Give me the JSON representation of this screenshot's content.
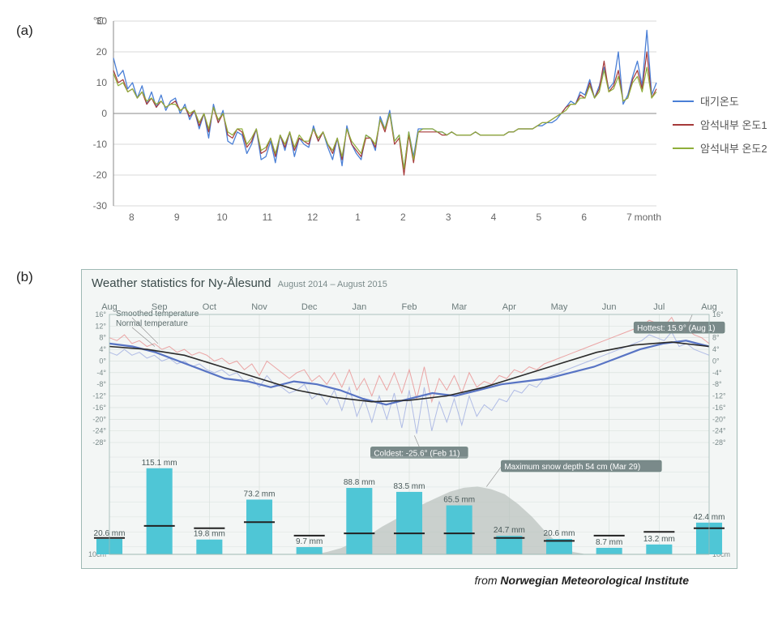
{
  "panel_a": {
    "label": "(a)",
    "y_unit": "℃",
    "x_unit": "month",
    "x_ticks": [
      "8",
      "9",
      "10",
      "11",
      "12",
      "1",
      "2",
      "3",
      "4",
      "5",
      "6",
      "7"
    ],
    "y_min": -30,
    "y_max": 30,
    "y_step": 10,
    "grid_color": "#d8d8d8",
    "axis_color": "#888888",
    "background": "#ffffff",
    "legend": [
      {
        "label": "대기온도",
        "color": "#4a7fd6"
      },
      {
        "label": "암석내부 온도1",
        "color": "#a63a3a"
      },
      {
        "label": "암석내부 온도2",
        "color": "#8fae3a"
      }
    ],
    "series": {
      "air": {
        "color": "#4a7fd6",
        "width": 1.3,
        "values": [
          18,
          12,
          14,
          8,
          10,
          5,
          9,
          3,
          7,
          2,
          6,
          1,
          4,
          5,
          0,
          3,
          -2,
          1,
          -5,
          0,
          -8,
          3,
          -3,
          1,
          -9,
          -10,
          -6,
          -7,
          -13,
          -10,
          -5,
          -15,
          -14,
          -9,
          -16,
          -7,
          -12,
          -6,
          -14,
          -8,
          -10,
          -11,
          -4,
          -9,
          -6,
          -11,
          -15,
          -8,
          -17,
          -4,
          -10,
          -13,
          -15,
          -7,
          -8,
          -12,
          -1,
          -5,
          1,
          -9,
          -7,
          -18,
          -6,
          -14,
          -5,
          -5,
          -5,
          -5,
          -6,
          -6,
          -7,
          -6,
          -7,
          -7,
          -7,
          -7,
          -6,
          -7,
          -7,
          -7,
          -7,
          -7,
          -7,
          -6,
          -6,
          -5,
          -5,
          -5,
          -5,
          -4,
          -4,
          -3,
          -3,
          -2,
          0,
          2,
          4,
          3,
          7,
          6,
          11,
          5,
          9,
          15,
          8,
          10,
          20,
          3,
          6,
          12,
          17,
          9,
          27,
          6,
          10
        ]
      },
      "rock1": {
        "color": "#a63a3a",
        "width": 1.2,
        "values": [
          14,
          10,
          11,
          7,
          8,
          5,
          7,
          3,
          5,
          2,
          4,
          2,
          3,
          4,
          1,
          2,
          -1,
          1,
          -4,
          0,
          -6,
          2,
          -3,
          0,
          -7,
          -8,
          -5,
          -6,
          -11,
          -9,
          -5,
          -13,
          -12,
          -8,
          -14,
          -7,
          -11,
          -6,
          -12,
          -8,
          -9,
          -10,
          -5,
          -9,
          -6,
          -10,
          -13,
          -8,
          -15,
          -5,
          -10,
          -12,
          -14,
          -8,
          -8,
          -11,
          -2,
          -6,
          0,
          -10,
          -8,
          -20,
          -7,
          -16,
          -6,
          -6,
          -6,
          -6,
          -6,
          -7,
          -7,
          -6,
          -7,
          -7,
          -7,
          -7,
          -6,
          -7,
          -7,
          -7,
          -7,
          -7,
          -7,
          -6,
          -6,
          -5,
          -5,
          -5,
          -5,
          -4,
          -3,
          -3,
          -2,
          -1,
          0,
          2,
          3,
          3,
          6,
          5,
          10,
          5,
          8,
          17,
          7,
          9,
          14,
          4,
          5,
          11,
          14,
          8,
          20,
          5,
          8
        ]
      },
      "rock2": {
        "color": "#8fae3a",
        "width": 1.2,
        "values": [
          13,
          9,
          10,
          7,
          8,
          5,
          7,
          4,
          5,
          3,
          4,
          2,
          3,
          3,
          1,
          2,
          0,
          1,
          -3,
          0,
          -5,
          2,
          -2,
          0,
          -6,
          -7,
          -5,
          -5,
          -10,
          -8,
          -5,
          -12,
          -11,
          -8,
          -13,
          -7,
          -10,
          -6,
          -11,
          -7,
          -9,
          -9,
          -5,
          -8,
          -6,
          -10,
          -12,
          -8,
          -14,
          -5,
          -9,
          -11,
          -13,
          -7,
          -8,
          -10,
          -2,
          -5,
          0,
          -9,
          -7,
          -18,
          -6,
          -15,
          -6,
          -5,
          -5,
          -5,
          -6,
          -6,
          -7,
          -6,
          -7,
          -7,
          -7,
          -7,
          -6,
          -7,
          -7,
          -7,
          -7,
          -7,
          -7,
          -6,
          -6,
          -5,
          -5,
          -5,
          -5,
          -4,
          -3,
          -3,
          -2,
          -1,
          0,
          1,
          3,
          3,
          5,
          5,
          9,
          5,
          7,
          14,
          7,
          8,
          12,
          4,
          5,
          10,
          12,
          7,
          15,
          5,
          7
        ]
      }
    }
  },
  "panel_b": {
    "label": "(b)",
    "title": "Weather statistics for Ny-Ålesund",
    "subtitle": "August 2014 – August 2015",
    "background": "#f3f6f5",
    "border_color": "#9fb9b4",
    "grid_color": "#d4ddd9",
    "credit_prefix": "from ",
    "credit_source": "Norwegian Meteorological Institute",
    "months": [
      "Aug",
      "Sep",
      "Oct",
      "Nov",
      "Dec",
      "Jan",
      "Feb",
      "Mar",
      "Apr",
      "May",
      "Jun",
      "Jul",
      "Aug"
    ],
    "temp_ylim": [
      -28,
      16
    ],
    "temp_ticks": [
      16,
      12,
      8,
      4,
      0,
      -4,
      -8,
      -12,
      -16,
      -20,
      -24,
      -28
    ],
    "precip_ylim": [
      0,
      130
    ],
    "legend_smoothed": "Smoothed temperature",
    "legend_normal": "Normal temperature",
    "hottest": {
      "text": "Hottest: 15.9° (Aug 1)",
      "month_idx": 11.5,
      "value": 15.9
    },
    "coldest": {
      "text": "Coldest: -25.6° (Feb 11)",
      "month_idx": 6.2,
      "value": -25.6
    },
    "max_snow": {
      "text": "Maximum snow depth 54 cm (Mar 29)",
      "month_idx": 8.0,
      "value_cm": 54
    },
    "normal_curve": {
      "color": "#2a2a2a",
      "width": 1.6,
      "values": [
        5,
        4,
        2,
        -2,
        -6,
        -10,
        -12.5,
        -14,
        -13.5,
        -12,
        -9,
        -5,
        -1,
        3,
        5.5,
        6.5,
        5
      ]
    },
    "smoothed_curve": {
      "color": "#5874c4",
      "width": 2.2,
      "values": [
        6,
        5,
        3,
        0,
        -3,
        -6,
        -7,
        -9,
        -7,
        -8,
        -10,
        -13,
        -15,
        -13,
        -11,
        -12,
        -10,
        -8,
        -7,
        -6,
        -4,
        -2,
        1,
        4,
        6,
        7,
        5
      ]
    },
    "daily_hi_color": "#e88a8a",
    "daily_lo_color": "#9aa8e0",
    "daily_hi": [
      8,
      7,
      9,
      6,
      7,
      5,
      6,
      4,
      5,
      3,
      4,
      2,
      3,
      2,
      0,
      1,
      -1,
      0,
      -3,
      -1,
      -5,
      0,
      -2,
      -4,
      -6,
      -4,
      -3,
      -7,
      -5,
      -8,
      -4,
      -9,
      -3,
      -10,
      -6,
      -12,
      -5,
      -10,
      -4,
      -11,
      -3,
      -13,
      -2,
      -14,
      -6,
      -10,
      -5,
      -11,
      -4,
      -9,
      -7,
      -8,
      -5,
      -6,
      -3,
      -4,
      -2,
      -3,
      -1,
      0,
      1,
      2,
      3,
      4,
      5,
      6,
      7,
      8,
      9,
      10,
      11,
      12,
      14,
      13,
      12,
      15,
      10,
      11,
      9,
      8,
      6
    ],
    "daily_lo": [
      3,
      2,
      4,
      2,
      3,
      1,
      2,
      0,
      1,
      -1,
      0,
      -2,
      -1,
      -3,
      -4,
      -3,
      -5,
      -4,
      -7,
      -6,
      -9,
      -5,
      -8,
      -9,
      -11,
      -10,
      -8,
      -13,
      -11,
      -15,
      -10,
      -17,
      -9,
      -19,
      -13,
      -21,
      -12,
      -20,
      -11,
      -23,
      -10,
      -25,
      -9,
      -24,
      -14,
      -21,
      -13,
      -22,
      -12,
      -19,
      -15,
      -17,
      -13,
      -14,
      -10,
      -11,
      -8,
      -9,
      -6,
      -5,
      -4,
      -3,
      -2,
      -1,
      0,
      1,
      2,
      3,
      4,
      5,
      6,
      7,
      9,
      8,
      7,
      10,
      5,
      6,
      4,
      3,
      2
    ],
    "bars": {
      "color": "#4fc6d6",
      "values_mm": [
        20.6,
        115.1,
        19.8,
        73.2,
        9.7,
        88.8,
        83.5,
        65.5,
        24.7,
        20.6,
        8.7,
        13.2,
        42.4
      ],
      "mid_markers_mm": [
        22,
        38,
        35,
        43,
        25,
        28,
        28,
        28,
        22,
        18,
        25,
        30,
        35
      ]
    },
    "snow": {
      "color": "#b8c0bc",
      "values_cm": [
        0,
        0,
        0,
        0,
        0,
        0,
        0,
        0,
        0,
        0,
        0,
        0,
        0,
        0,
        0,
        0,
        2,
        5,
        10,
        15,
        22,
        28,
        34,
        40,
        45,
        50,
        53,
        54,
        52,
        48,
        40,
        30,
        18,
        8,
        2,
        0,
        0,
        0,
        0,
        0,
        0,
        0,
        0,
        0,
        0
      ]
    }
  }
}
